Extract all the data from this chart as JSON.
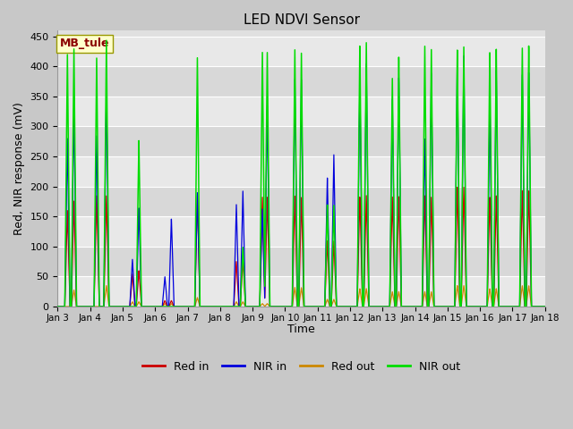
{
  "title": "LED NDVI Sensor",
  "ylabel": "Red, NIR response (mV)",
  "xlabel": "Time",
  "annotation": "MB_tule",
  "ylim": [
    0,
    460
  ],
  "xlim": [
    0,
    15
  ],
  "legend": [
    "Red in",
    "NIR in",
    "Red out",
    "NIR out"
  ],
  "colors": {
    "red_in": "#cc0000",
    "nir_in": "#0000dd",
    "red_out": "#cc8800",
    "nir_out": "#00dd00"
  },
  "fig_facecolor": "#c8c8c8",
  "ax_facecolor": "#e0e0e0",
  "grid_color": "#ffffff",
  "days": [
    "Jan 3",
    "Jan 4",
    "Jan 5",
    "Jan 6",
    "Jan 7",
    "Jan 8",
    "Jan 9",
    "Jan 10",
    "Jan 11",
    "Jan 12",
    "Jan 13",
    "Jan 14",
    "Jan 15",
    "Jan 16",
    "Jan 17",
    "Jan 18"
  ],
  "yticks": [
    0,
    50,
    100,
    150,
    200,
    250,
    300,
    350,
    400,
    450
  ],
  "spike_groups": [
    {
      "t": 0.3,
      "red_in": 160,
      "nir_in": 280,
      "red_out": 0,
      "nir_out": 420
    },
    {
      "t": 0.5,
      "red_in": 178,
      "nir_in": 335,
      "red_out": 28,
      "nir_out": 435
    },
    {
      "t": 1.2,
      "red_in": 185,
      "nir_in": 285,
      "red_out": 0,
      "nir_out": 415
    },
    {
      "t": 1.5,
      "red_in": 185,
      "nir_in": 365,
      "red_out": 35,
      "nir_out": 445
    },
    {
      "t": 2.3,
      "red_in": 55,
      "nir_in": 80,
      "red_out": 8,
      "nir_out": 0
    },
    {
      "t": 2.5,
      "red_in": 60,
      "nir_in": 165,
      "red_out": 8,
      "nir_out": 278
    },
    {
      "t": 3.3,
      "red_in": 10,
      "nir_in": 50,
      "red_out": 5,
      "nir_out": 0
    },
    {
      "t": 3.5,
      "red_in": 10,
      "nir_in": 148,
      "red_out": 5,
      "nir_out": 0
    },
    {
      "t": 4.3,
      "red_in": 185,
      "nir_in": 190,
      "red_out": 15,
      "nir_out": 415
    },
    {
      "t": 5.5,
      "red_in": 75,
      "nir_in": 170,
      "red_out": 8,
      "nir_out": 0
    },
    {
      "t": 5.7,
      "red_in": 80,
      "nir_in": 195,
      "red_out": 8,
      "nir_out": 100
    },
    {
      "t": 6.3,
      "red_in": 185,
      "nir_in": 165,
      "red_out": 5,
      "nir_out": 430
    },
    {
      "t": 6.45,
      "red_in": 185,
      "nir_in": 340,
      "red_out": 5,
      "nir_out": 430
    },
    {
      "t": 7.3,
      "red_in": 185,
      "nir_in": 380,
      "red_out": 32,
      "nir_out": 430
    },
    {
      "t": 7.5,
      "red_in": 185,
      "nir_in": 385,
      "red_out": 32,
      "nir_out": 430
    },
    {
      "t": 8.3,
      "red_in": 110,
      "nir_in": 215,
      "red_out": 12,
      "nir_out": 170
    },
    {
      "t": 8.5,
      "red_in": 110,
      "nir_in": 255,
      "red_out": 12,
      "nir_out": 170
    },
    {
      "t": 9.3,
      "red_in": 185,
      "nir_in": 380,
      "red_out": 30,
      "nir_out": 440
    },
    {
      "t": 9.5,
      "red_in": 185,
      "nir_in": 405,
      "red_out": 30,
      "nir_out": 440
    },
    {
      "t": 10.3,
      "red_in": 185,
      "nir_in": 350,
      "red_out": 25,
      "nir_out": 385
    },
    {
      "t": 10.5,
      "red_in": 185,
      "nir_in": 385,
      "red_out": 25,
      "nir_out": 420
    },
    {
      "t": 11.3,
      "red_in": 185,
      "nir_in": 280,
      "red_out": 25,
      "nir_out": 435
    },
    {
      "t": 11.5,
      "red_in": 185,
      "nir_in": 395,
      "red_out": 25,
      "nir_out": 435
    },
    {
      "t": 12.3,
      "red_in": 200,
      "nir_in": 415,
      "red_out": 35,
      "nir_out": 430
    },
    {
      "t": 12.5,
      "red_in": 200,
      "nir_in": 420,
      "red_out": 35,
      "nir_out": 435
    },
    {
      "t": 13.3,
      "red_in": 185,
      "nir_in": 340,
      "red_out": 30,
      "nir_out": 430
    },
    {
      "t": 13.5,
      "red_in": 185,
      "nir_in": 395,
      "red_out": 30,
      "nir_out": 430
    },
    {
      "t": 14.3,
      "red_in": 195,
      "nir_in": 390,
      "red_out": 35,
      "nir_out": 435
    },
    {
      "t": 14.5,
      "red_in": 195,
      "nir_in": 395,
      "red_out": 35,
      "nir_out": 440
    }
  ]
}
